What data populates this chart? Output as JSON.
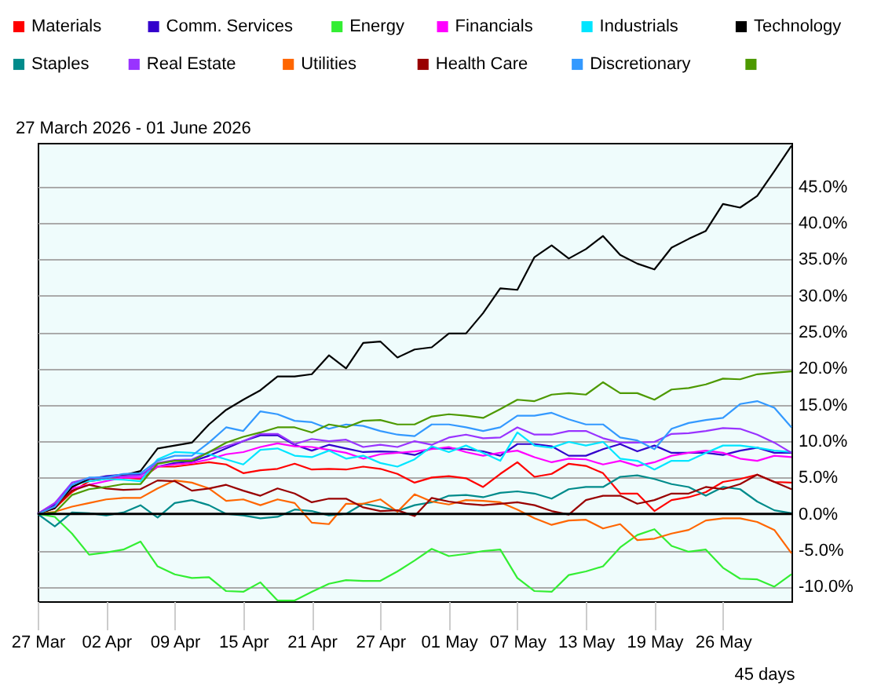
{
  "chart_data": {
    "type": "line",
    "title": "27 March 2026 - 01 June 2026",
    "categories": [
      "27 Mar",
      null,
      null,
      null,
      "02 Apr",
      null,
      null,
      null,
      "09 Apr",
      null,
      null,
      null,
      "15 Apr",
      null,
      null,
      null,
      "21 Apr",
      null,
      null,
      null,
      "27 Apr",
      null,
      null,
      null,
      "01 May",
      null,
      null,
      null,
      "07 May",
      null,
      null,
      null,
      "13 May",
      null,
      null,
      null,
      "19 May",
      null,
      null,
      null,
      "26 May",
      null,
      null,
      null,
      null
    ],
    "series": [
      {
        "name": "Materials",
        "color": "#ff0000",
        "values": [
          0,
          0.8,
          3,
          4.5,
          4.8,
          5,
          4.8,
          6.5,
          6.5,
          6.8,
          7.1,
          6.8,
          5.6,
          6,
          6.2,
          6.9,
          6.1,
          6.2,
          6.1,
          6.5,
          6.2,
          5.5,
          4.3,
          5,
          5.2,
          4.9,
          3.7,
          5.5,
          7.1,
          5.1,
          5.5,
          6.9,
          6.6,
          5.6,
          2.8,
          2.8,
          0.4,
          1.9,
          2.3,
          3,
          4.4,
          4.8,
          5.4,
          4.4,
          4.3
        ]
      },
      {
        "name": "Comm. Services",
        "color": "#3300cc",
        "values": [
          0,
          1.3,
          4,
          4.8,
          5.2,
          5.4,
          5.4,
          6.5,
          7,
          7.2,
          8,
          9,
          10,
          10.8,
          10.8,
          9.5,
          8.7,
          9.5,
          9,
          8.5,
          8.6,
          8.5,
          8.1,
          9,
          9,
          8.9,
          8.6,
          8,
          9.6,
          9.6,
          9.3,
          8,
          8,
          8.9,
          9.6,
          8.6,
          9.4,
          8.4,
          8.4,
          8.4,
          8.1,
          8.7,
          9.1,
          8.4,
          8.4
        ]
      },
      {
        "name": "Energy",
        "color": "#33ee33",
        "values": [
          0,
          -0.4,
          -2.7,
          -5.6,
          -5.3,
          -4.9,
          -3.8,
          -7.2,
          -8.3,
          -8.8,
          -8.7,
          -10.6,
          -10.7,
          -9.4,
          -11.9,
          -11.9,
          -10.7,
          -9.6,
          -9.1,
          -9.2,
          -9.2,
          -7.9,
          -6.4,
          -4.8,
          -5.8,
          -5.5,
          -5.1,
          -4.9,
          -8.8,
          -10.6,
          -10.7,
          -8.4,
          -7.9,
          -7.2,
          -4.6,
          -2.9,
          -2.1,
          -4.4,
          -5.2,
          -4.9,
          -7.4,
          -8.9,
          -9,
          -10,
          -8.3
        ]
      },
      {
        "name": "Financials",
        "color": "#ff00ff",
        "values": [
          0,
          1.5,
          3.5,
          4,
          4.5,
          5,
          5,
          6.5,
          6.8,
          7,
          7.5,
          8.2,
          8.5,
          9.2,
          9.7,
          9.3,
          9.2,
          8.8,
          8.4,
          7.6,
          8.2,
          8.4,
          8.6,
          8.9,
          9.2,
          8.5,
          8,
          8.4,
          8.7,
          7.8,
          7.1,
          7.6,
          7.5,
          6.8,
          7.3,
          6.6,
          7.1,
          8,
          8.4,
          8.7,
          8.4,
          7.6,
          7.3,
          8,
          7.8
        ]
      },
      {
        "name": "Industrials",
        "color": "#00e5ff",
        "values": [
          0,
          1,
          4,
          4.5,
          4.8,
          4.7,
          4.5,
          7.5,
          8.5,
          8.4,
          8.2,
          7.5,
          6.8,
          8.8,
          9,
          8,
          7.8,
          8.7,
          7.6,
          8,
          7,
          6.5,
          7.5,
          9.3,
          8.5,
          9.4,
          8.4,
          7.3,
          11.2,
          9.4,
          9.1,
          9.9,
          9.4,
          9.9,
          7.6,
          7.3,
          6.1,
          7.3,
          7.3,
          8.4,
          9.4,
          9.4,
          9.1,
          8.7,
          8.5
        ]
      },
      {
        "name": "Technology",
        "color": "#000000",
        "values": [
          0,
          0.8,
          3.7,
          4.8,
          5,
          5.3,
          5.9,
          9,
          9.4,
          9.8,
          12.3,
          14.3,
          15.7,
          17,
          18.9,
          18.9,
          19.2,
          21.8,
          20,
          23.5,
          23.7,
          21.5,
          22.6,
          22.9,
          24.8,
          24.8,
          27.6,
          31,
          30.8,
          35.3,
          36.9,
          35.1,
          36.4,
          38.2,
          35.6,
          34.4,
          33.6,
          36.6,
          37.8,
          38.9,
          42.6,
          42.1,
          43.7,
          47.1,
          50.6
        ]
      },
      {
        "name": "Staples",
        "color": "#008b8b",
        "values": [
          0,
          -1.7,
          0.2,
          0.1,
          -0.2,
          0.2,
          1.2,
          -0.5,
          1.5,
          1.9,
          1.2,
          0,
          -0.2,
          -0.6,
          -0.4,
          0.6,
          0.4,
          -0.2,
          0,
          1.4,
          1,
          0.4,
          1.2,
          1.6,
          2.5,
          2.6,
          2.3,
          2.9,
          3.1,
          2.8,
          2.1,
          3.4,
          3.7,
          3.7,
          5.1,
          5.3,
          4.8,
          4.1,
          3.7,
          2.5,
          3.7,
          3.4,
          1.7,
          0.5,
          0.1
        ]
      },
      {
        "name": "Real Estate",
        "color": "#9933ff",
        "values": [
          0,
          1.5,
          4.3,
          4.9,
          5,
          5.2,
          5.3,
          7,
          7.4,
          7.5,
          8.5,
          9.3,
          10,
          11,
          11,
          9.6,
          10.3,
          10,
          10.2,
          9.2,
          9.5,
          9.2,
          10,
          9.5,
          10.5,
          10.9,
          10.4,
          10.5,
          11.9,
          10.9,
          10.9,
          11.4,
          11.4,
          10.4,
          9.8,
          9.8,
          9.9,
          11,
          11.1,
          11.4,
          11.8,
          11.7,
          10.9,
          9.8,
          8.4
        ]
      },
      {
        "name": "Utilities",
        "color": "#ff6600",
        "values": [
          0,
          0.3,
          1,
          1.5,
          2,
          2.2,
          2.2,
          3.5,
          4.6,
          4.3,
          3.5,
          1.8,
          2,
          1.2,
          2,
          1.5,
          -1.2,
          -1.4,
          1.4,
          1.4,
          2,
          0.3,
          2.7,
          1.7,
          1.3,
          1.9,
          1.8,
          1.6,
          0.6,
          -0.6,
          -1.5,
          -0.9,
          -0.8,
          -2,
          -1.4,
          -3.6,
          -3.4,
          -2.7,
          -2.2,
          -0.9,
          -0.6,
          -0.6,
          -1.1,
          -2.2,
          -5.4
        ]
      },
      {
        "name": "Health Care",
        "color": "#990000",
        "values": [
          0,
          1,
          3.2,
          4,
          3.5,
          3.3,
          3.4,
          4.6,
          4.5,
          3.2,
          3.5,
          4,
          3.2,
          2.5,
          3.5,
          2.8,
          1.6,
          2.1,
          2.1,
          0.9,
          0.4,
          0.5,
          -0.3,
          2.2,
          1.7,
          1.4,
          1.2,
          1.4,
          1.6,
          1.2,
          0.4,
          -0.1,
          1.9,
          2.5,
          2.5,
          1.4,
          1.9,
          2.8,
          2.8,
          3.7,
          3.4,
          4.1,
          5.4,
          4.4,
          3.4
        ]
      },
      {
        "name": "Discretionary",
        "color": "#3399ff",
        "values": [
          0,
          1,
          4,
          5,
          5,
          5.5,
          5.6,
          7.3,
          8,
          8,
          9.8,
          11.9,
          11.4,
          14.1,
          13.7,
          12.8,
          12.6,
          11.7,
          12.3,
          12.1,
          11.4,
          10.9,
          10.7,
          12.3,
          12.3,
          11.9,
          11.4,
          11.9,
          13.5,
          13.5,
          13.9,
          13,
          12.3,
          12.3,
          10.5,
          10.1,
          8.9,
          11.7,
          12.5,
          12.9,
          13.2,
          15.1,
          15.5,
          14.6,
          11.9
        ]
      },
      {
        "color": "#4d9900",
        "values": [
          0,
          0.2,
          2.6,
          3.4,
          3.7,
          4.1,
          4.1,
          6.9,
          7.3,
          7.3,
          8.5,
          9.8,
          10.6,
          11.2,
          11.9,
          11.9,
          11.2,
          12.3,
          11.9,
          12.8,
          12.9,
          12.3,
          12.3,
          13.4,
          13.7,
          13.5,
          13.2,
          14.4,
          15.7,
          15.5,
          16.4,
          16.6,
          16.4,
          18.1,
          16.6,
          16.6,
          15.7,
          17.1,
          17.3,
          17.8,
          18.6,
          18.5,
          19.2,
          19.4,
          19.6
        ]
      }
    ],
    "ylim": [
      -12,
      51
    ],
    "yticks": [
      {
        "value": -10,
        "label": "-10.0%"
      },
      {
        "value": -5,
        "label": "-5.0%"
      },
      {
        "value": 0,
        "label": "0.0%"
      },
      {
        "value": 5,
        "label": "5.0%"
      },
      {
        "value": 10,
        "label": "10.0%"
      },
      {
        "value": 15,
        "label": "15.0%"
      },
      {
        "value": 20,
        "label": "20.0%"
      },
      {
        "value": 25,
        "label": "25.0%"
      },
      {
        "value": 30,
        "label": "30.0%"
      },
      {
        "value": 35,
        "label": "35.0%"
      },
      {
        "value": 40,
        "label": "40.0%"
      },
      {
        "value": 45,
        "label": "45.0%"
      }
    ],
    "ref_lines": [
      {
        "axis": "y",
        "value": 0,
        "color": "#000000"
      }
    ],
    "grid": "y",
    "legend": "top",
    "line_style": "solid",
    "annotations": [
      "45 days"
    ]
  }
}
